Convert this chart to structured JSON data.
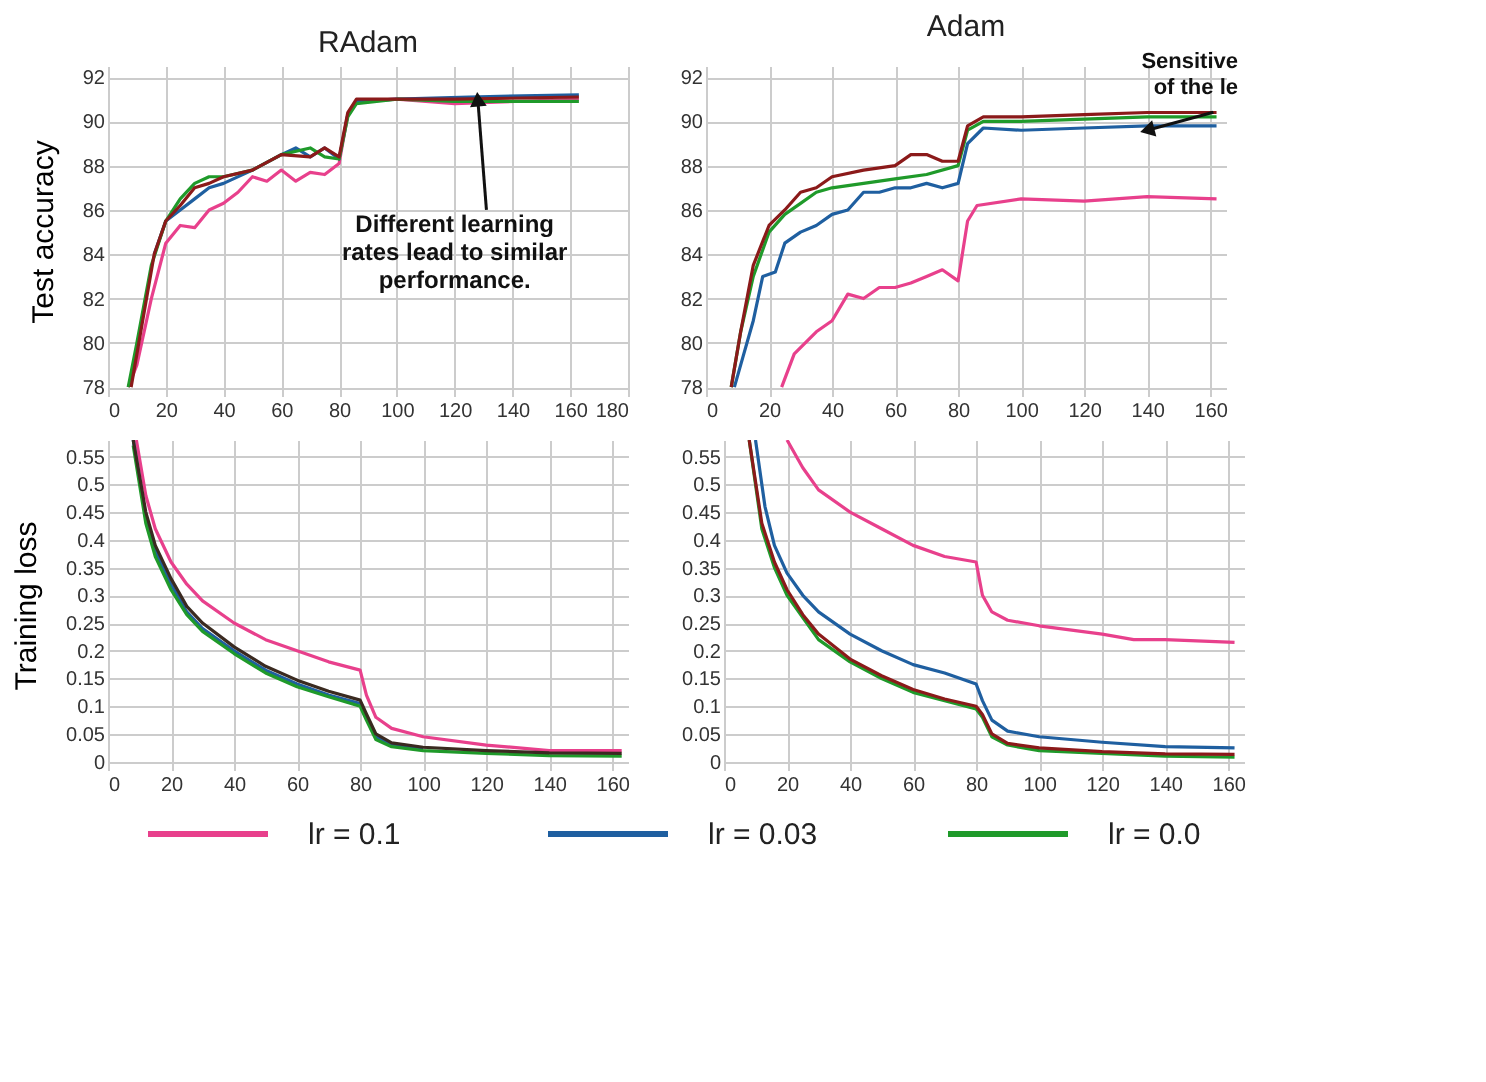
{
  "chart_data": [
    {
      "type": "line",
      "title": "RAdam",
      "ylabel": "Test accuracy",
      "xlim": [
        0,
        180
      ],
      "xticks": [
        0,
        20,
        40,
        60,
        80,
        100,
        120,
        140,
        160,
        180
      ],
      "ylim": [
        77.6,
        92.5
      ],
      "yticks": [
        78,
        80,
        82,
        84,
        86,
        88,
        90,
        92
      ],
      "grid": true,
      "legend": "bottom",
      "line_style": "solid",
      "annotations": [
        {
          "text": "Different learning\nrates lead to similar\nperformance.",
          "x": 128,
          "y": 91
        }
      ],
      "series": [
        {
          "name": "lr = 0.1",
          "color": "#e8408c",
          "x": [
            7,
            10,
            15,
            20,
            25,
            30,
            35,
            40,
            45,
            50,
            55,
            60,
            65,
            70,
            75,
            80,
            83,
            86,
            100,
            120,
            163
          ],
          "values": [
            78,
            79,
            82,
            84.5,
            85.3,
            85.2,
            86,
            86.3,
            86.8,
            87.5,
            87.3,
            87.8,
            87.3,
            87.7,
            87.6,
            88.1,
            90.3,
            90.9,
            91,
            90.8,
            91
          ]
        },
        {
          "name": "lr = 0.03",
          "color": "#1f5fa0",
          "x": [
            16,
            20,
            25,
            30,
            35,
            40,
            50,
            60,
            65,
            70,
            75,
            80,
            83,
            86,
            100,
            125,
            163
          ],
          "values": [
            84,
            85.5,
            86,
            86.5,
            87,
            87.2,
            87.8,
            88.5,
            88.8,
            88.4,
            88.8,
            88.3,
            90.3,
            90.9,
            91,
            91.1,
            91.2
          ]
        },
        {
          "name": "lr = 0.0",
          "color": "#1f9a2a",
          "x": [
            7,
            10,
            15,
            20,
            25,
            30,
            35,
            40,
            50,
            60,
            70,
            75,
            80,
            83,
            86,
            100,
            120,
            163
          ],
          "values": [
            78,
            80,
            83.5,
            85.5,
            86.5,
            87.2,
            87.5,
            87.5,
            87.8,
            88.5,
            88.8,
            88.4,
            88.3,
            90.2,
            90.8,
            91,
            90.9,
            90.9
          ]
        },
        {
          "color": "#8b1a1a",
          "x": [
            8,
            12,
            16,
            20,
            25,
            30,
            35,
            40,
            50,
            60,
            70,
            75,
            80,
            83,
            86,
            100,
            120,
            163
          ],
          "values": [
            78,
            81,
            84,
            85.5,
            86.2,
            87,
            87.2,
            87.5,
            87.8,
            88.5,
            88.4,
            88.8,
            88.4,
            90.4,
            91,
            91,
            91,
            91.1
          ]
        }
      ]
    },
    {
      "type": "line",
      "title": "Adam",
      "xlim": [
        0,
        165
      ],
      "xticks": [
        0,
        20,
        40,
        60,
        80,
        100,
        120,
        140,
        160
      ],
      "ylim": [
        77.6,
        92.5
      ],
      "yticks": [
        78,
        80,
        82,
        84,
        86,
        88,
        90,
        92
      ],
      "grid": true,
      "line_style": "solid",
      "annotations": [
        {
          "text": "Sensitive\nof the le",
          "x": 140,
          "y": 89.6
        }
      ],
      "series": [
        {
          "name": "lr = 0.1",
          "color": "#e8408c",
          "x": [
            24,
            28,
            35,
            40,
            45,
            50,
            55,
            60,
            65,
            70,
            75,
            80,
            83,
            86,
            100,
            120,
            140,
            162
          ],
          "values": [
            78,
            79.5,
            80.5,
            81,
            82.2,
            82,
            82.5,
            82.5,
            82.7,
            83,
            83.3,
            82.8,
            85.5,
            86.2,
            86.5,
            86.4,
            86.6,
            86.5
          ]
        },
        {
          "name": "lr = 0.03",
          "color": "#1f5fa0",
          "x": [
            9,
            12,
            15,
            18,
            22,
            25,
            30,
            35,
            40,
            45,
            50,
            55,
            60,
            65,
            70,
            75,
            80,
            83,
            88,
            100,
            120,
            140,
            162
          ],
          "values": [
            78,
            79.5,
            81,
            83,
            83.2,
            84.5,
            85,
            85.3,
            85.8,
            86,
            86.8,
            86.8,
            87,
            87,
            87.2,
            87,
            87.2,
            89,
            89.7,
            89.6,
            89.7,
            89.8,
            89.8
          ]
        },
        {
          "name": "lr = 0.0",
          "color": "#1f9a2a",
          "x": [
            8,
            11,
            15,
            20,
            25,
            30,
            35,
            40,
            50,
            60,
            70,
            80,
            83,
            88,
            100,
            120,
            140,
            162
          ],
          "values": [
            78,
            80.5,
            83,
            85,
            85.8,
            86.3,
            86.8,
            87,
            87.2,
            87.4,
            87.6,
            88,
            89.6,
            90,
            90,
            90.1,
            90.2,
            90.2
          ]
        },
        {
          "color": "#8b1a1a",
          "x": [
            8,
            11,
            15,
            20,
            25,
            30,
            35,
            40,
            50,
            60,
            65,
            70,
            75,
            80,
            83,
            88,
            100,
            120,
            140,
            162
          ],
          "values": [
            78,
            80.5,
            83.5,
            85.3,
            86,
            86.8,
            87,
            87.5,
            87.8,
            88,
            88.5,
            88.5,
            88.2,
            88.2,
            89.8,
            90.2,
            90.2,
            90.3,
            90.4,
            90.4
          ]
        }
      ]
    },
    {
      "type": "line",
      "ylabel": "Training loss",
      "xlim": [
        0,
        165
      ],
      "xticks": [
        0,
        20,
        40,
        60,
        80,
        100,
        120,
        140,
        160
      ],
      "ylim": [
        -0.015,
        0.58
      ],
      "yticks": [
        0,
        0.05,
        0.1,
        0.15,
        0.2,
        0.25,
        0.3,
        0.35,
        0.4,
        0.45,
        0.5,
        0.55
      ],
      "grid": true,
      "line_style": "solid",
      "series": [
        {
          "name": "lr = 0.1",
          "color": "#e8408c",
          "x": [
            9,
            12,
            15,
            20,
            25,
            30,
            40,
            50,
            60,
            70,
            80,
            82,
            85,
            90,
            100,
            120,
            140,
            163
          ],
          "values": [
            0.58,
            0.48,
            0.42,
            0.36,
            0.32,
            0.29,
            0.25,
            0.22,
            0.2,
            0.18,
            0.165,
            0.12,
            0.08,
            0.06,
            0.045,
            0.03,
            0.02,
            0.02
          ]
        },
        {
          "name": "lr = 0.03",
          "color": "#1f5fa0",
          "x": [
            8,
            12,
            15,
            20,
            25,
            30,
            40,
            50,
            60,
            70,
            80,
            82,
            85,
            90,
            100
          ],
          "values": [
            0.58,
            0.44,
            0.38,
            0.32,
            0.27,
            0.24,
            0.2,
            0.165,
            0.14,
            0.12,
            0.105,
            0.08,
            0.045,
            0.03,
            0.022
          ]
        },
        {
          "name": "lr = 0.0",
          "color": "#1f9a2a",
          "x": [
            8,
            12,
            15,
            20,
            25,
            30,
            40,
            50,
            60,
            70,
            80,
            82,
            85,
            90,
            100,
            120,
            140,
            163
          ],
          "values": [
            0.57,
            0.43,
            0.37,
            0.31,
            0.265,
            0.235,
            0.195,
            0.16,
            0.135,
            0.117,
            0.1,
            0.075,
            0.04,
            0.027,
            0.02,
            0.015,
            0.011,
            0.01
          ]
        },
        {
          "color": "#3a2a20",
          "x": [
            8,
            12,
            15,
            20,
            25,
            30,
            40,
            50,
            60,
            70,
            80,
            82,
            85,
            90,
            100,
            120,
            140,
            163
          ],
          "values": [
            0.58,
            0.45,
            0.39,
            0.33,
            0.28,
            0.25,
            0.207,
            0.172,
            0.147,
            0.127,
            0.111,
            0.086,
            0.05,
            0.034,
            0.026,
            0.02,
            0.016,
            0.015
          ]
        }
      ]
    },
    {
      "type": "line",
      "xlim": [
        0,
        165
      ],
      "xticks": [
        0,
        20,
        40,
        60,
        80,
        100,
        120,
        140,
        160
      ],
      "ylim": [
        -0.015,
        0.58
      ],
      "yticks": [
        0,
        0.05,
        0.1,
        0.15,
        0.2,
        0.25,
        0.3,
        0.35,
        0.4,
        0.45,
        0.5,
        0.55
      ],
      "grid": true,
      "line_style": "solid",
      "series": [
        {
          "name": "lr = 0.1",
          "color": "#e8408c",
          "x": [
            20,
            25,
            30,
            40,
            50,
            60,
            70,
            80,
            82,
            85,
            90,
            100,
            120,
            130,
            140,
            162
          ],
          "values": [
            0.58,
            0.53,
            0.49,
            0.45,
            0.42,
            0.39,
            0.37,
            0.36,
            0.3,
            0.27,
            0.255,
            0.245,
            0.23,
            0.22,
            0.22,
            0.215
          ]
        },
        {
          "name": "lr = 0.03",
          "color": "#1f5fa0",
          "x": [
            10,
            13,
            16,
            20,
            25,
            30,
            40,
            50,
            60,
            70,
            80,
            82,
            85,
            90,
            100,
            120,
            140,
            162
          ],
          "values": [
            0.58,
            0.46,
            0.39,
            0.34,
            0.3,
            0.27,
            0.23,
            0.2,
            0.175,
            0.16,
            0.14,
            0.11,
            0.075,
            0.055,
            0.045,
            0.035,
            0.027,
            0.025
          ]
        },
        {
          "name": "lr = 0.0",
          "color": "#1f9a2a",
          "x": [
            8,
            12,
            16,
            20,
            25,
            30,
            40,
            50,
            60,
            70,
            80,
            82,
            85,
            90,
            100,
            120,
            140,
            162
          ],
          "values": [
            0.58,
            0.42,
            0.35,
            0.3,
            0.26,
            0.22,
            0.18,
            0.15,
            0.125,
            0.11,
            0.095,
            0.08,
            0.045,
            0.03,
            0.02,
            0.015,
            0.01,
            0.008
          ]
        },
        {
          "color": "#8b1a1a",
          "x": [
            8,
            12,
            16,
            20,
            25,
            30,
            40,
            50,
            60,
            70,
            80,
            82,
            85,
            90,
            100,
            120,
            140,
            162
          ],
          "values": [
            0.58,
            0.43,
            0.36,
            0.31,
            0.265,
            0.23,
            0.185,
            0.155,
            0.13,
            0.113,
            0.1,
            0.085,
            0.05,
            0.033,
            0.025,
            0.018,
            0.014,
            0.013
          ]
        }
      ]
    }
  ]
}
